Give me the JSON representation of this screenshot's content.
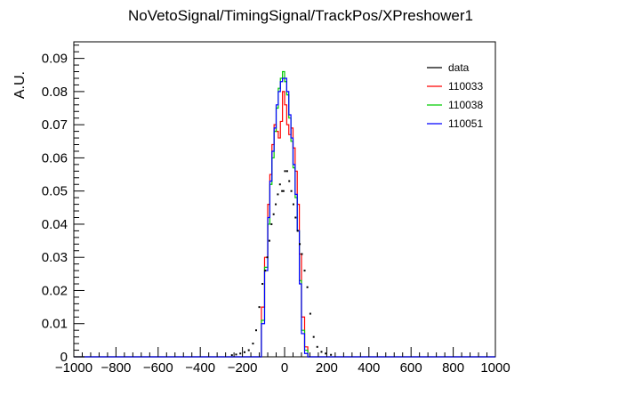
{
  "chart_data": {
    "type": "histogram",
    "title": "NoVetoSignal/TimingSignal/TrackPos/XPreshower1",
    "xlabel": "",
    "ylabel": "A.U.",
    "xlim": [
      -1000,
      1000
    ],
    "ylim": [
      0,
      0.095
    ],
    "xticks": [
      "−1000",
      "−800",
      "−600",
      "−400",
      "−200",
      "0",
      "200",
      "400",
      "600",
      "800",
      "1000"
    ],
    "yticks": [
      "0",
      "0.01",
      "0.02",
      "0.03",
      "0.04",
      "0.05",
      "0.06",
      "0.07",
      "0.08",
      "0.09"
    ],
    "grid": false,
    "legend_position": "top-right",
    "bin_edges": [
      -110,
      -95,
      -80,
      -70,
      -60,
      -50,
      -40,
      -30,
      -20,
      -10,
      0,
      10,
      20,
      30,
      40,
      50,
      60,
      70,
      80,
      95,
      110
    ],
    "series": [
      {
        "name": "data",
        "style": "points",
        "color": "#000000",
        "points": [
          {
            "x": -250,
            "y": 0.0005
          },
          {
            "x": -230,
            "y": 0.0007
          },
          {
            "x": -210,
            "y": 0.001
          },
          {
            "x": -190,
            "y": 0.0014
          },
          {
            "x": -170,
            "y": 0.002
          },
          {
            "x": -150,
            "y": 0.004
          },
          {
            "x": -135,
            "y": 0.008
          },
          {
            "x": -120,
            "y": 0.015
          },
          {
            "x": -105,
            "y": 0.022
          },
          {
            "x": -92,
            "y": 0.026
          },
          {
            "x": -82,
            "y": 0.03
          },
          {
            "x": -72,
            "y": 0.035
          },
          {
            "x": -62,
            "y": 0.04
          },
          {
            "x": -52,
            "y": 0.043
          },
          {
            "x": -42,
            "y": 0.046
          },
          {
            "x": -32,
            "y": 0.049
          },
          {
            "x": -22,
            "y": 0.052
          },
          {
            "x": -12,
            "y": 0.05
          },
          {
            "x": -5,
            "y": 0.05
          },
          {
            "x": 2,
            "y": 0.056
          },
          {
            "x": 12,
            "y": 0.056
          },
          {
            "x": 22,
            "y": 0.053
          },
          {
            "x": 32,
            "y": 0.05
          },
          {
            "x": 42,
            "y": 0.046
          },
          {
            "x": 52,
            "y": 0.042
          },
          {
            "x": 62,
            "y": 0.038
          },
          {
            "x": 72,
            "y": 0.034
          },
          {
            "x": 82,
            "y": 0.031
          },
          {
            "x": 95,
            "y": 0.026
          },
          {
            "x": 108,
            "y": 0.021
          },
          {
            "x": 122,
            "y": 0.013
          },
          {
            "x": 138,
            "y": 0.006
          },
          {
            "x": 155,
            "y": 0.003
          },
          {
            "x": 175,
            "y": 0.0015
          },
          {
            "x": 195,
            "y": 0.001
          },
          {
            "x": 220,
            "y": 0.0006
          }
        ]
      },
      {
        "name": "110033",
        "style": "step",
        "color": "#ff0000",
        "values": [
          0.015,
          0.03,
          0.046,
          0.055,
          0.064,
          0.07,
          0.068,
          0.066,
          0.071,
          0.08,
          0.076,
          0.07,
          0.067,
          0.069,
          0.063,
          0.056,
          0.046,
          0.031,
          0.012,
          0.003
        ]
      },
      {
        "name": "110038",
        "style": "step",
        "color": "#00cc00",
        "values": [
          0.011,
          0.027,
          0.04,
          0.052,
          0.06,
          0.068,
          0.075,
          0.081,
          0.084,
          0.086,
          0.083,
          0.079,
          0.072,
          0.065,
          0.057,
          0.048,
          0.038,
          0.023,
          0.008,
          0.002
        ]
      },
      {
        "name": "110051",
        "style": "step",
        "color": "#0000ff",
        "values": [
          0.01,
          0.026,
          0.042,
          0.053,
          0.062,
          0.069,
          0.076,
          0.08,
          0.083,
          0.084,
          0.084,
          0.08,
          0.073,
          0.066,
          0.058,
          0.049,
          0.038,
          0.022,
          0.007,
          0.001
        ]
      }
    ]
  }
}
